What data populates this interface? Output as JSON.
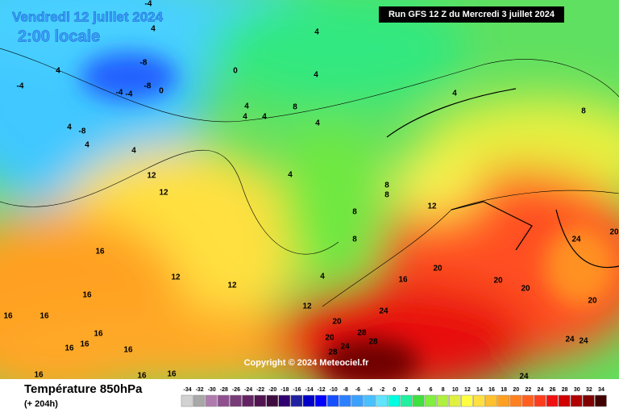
{
  "header": {
    "date": "Vendredi 12 juillet 2024",
    "time": "2:00 locale",
    "run": "Run GFS 12 Z du Mercredi 3 juillet 2024"
  },
  "copyright": "Copyright © 2024 Meteociel.fr",
  "footer": {
    "title": "Température 850hPa",
    "subtitle": "(+ 204h)"
  },
  "map": {
    "labels": [
      -4,
      4,
      4,
      -8,
      0,
      4,
      4,
      -8,
      -4,
      -4,
      0,
      -4,
      8,
      4,
      4,
      4,
      4,
      4,
      -8,
      4,
      4,
      4,
      8,
      4,
      12,
      12,
      8,
      8,
      12,
      8,
      8,
      16,
      24,
      20,
      20,
      16,
      20,
      20,
      4,
      12,
      12,
      16,
      12,
      20,
      24,
      16,
      16,
      20,
      16,
      28,
      20,
      28,
      16,
      16,
      24,
      16,
      28,
      24,
      24,
      16,
      16,
      16,
      24
    ]
  },
  "legend": {
    "values": [
      -34,
      -32,
      -30,
      -28,
      -26,
      -24,
      -22,
      -20,
      -18,
      -16,
      -14,
      -12,
      -10,
      -8,
      -6,
      -4,
      -2,
      0,
      2,
      4,
      6,
      8,
      10,
      12,
      14,
      16,
      18,
      20,
      22,
      24,
      26,
      28,
      30,
      32,
      34
    ],
    "colors": [
      "#d2d2d2",
      "#a8a8a8",
      "#b07cb0",
      "#905090",
      "#783c78",
      "#642464",
      "#501450",
      "#400c40",
      "#300070",
      "#2020a0",
      "#0000c8",
      "#0000ff",
      "#1450ff",
      "#2c80ff",
      "#3ca0ff",
      "#48c0ff",
      "#60e4ff",
      "#00ffe0",
      "#20f0a0",
      "#40e040",
      "#80f040",
      "#b0f040",
      "#e0f040",
      "#ffff40",
      "#ffe040",
      "#ffc030",
      "#ffa020",
      "#ff8020",
      "#ff6020",
      "#ff3c1c",
      "#f01010",
      "#d00000",
      "#b00000",
      "#800000",
      "#400000"
    ]
  }
}
